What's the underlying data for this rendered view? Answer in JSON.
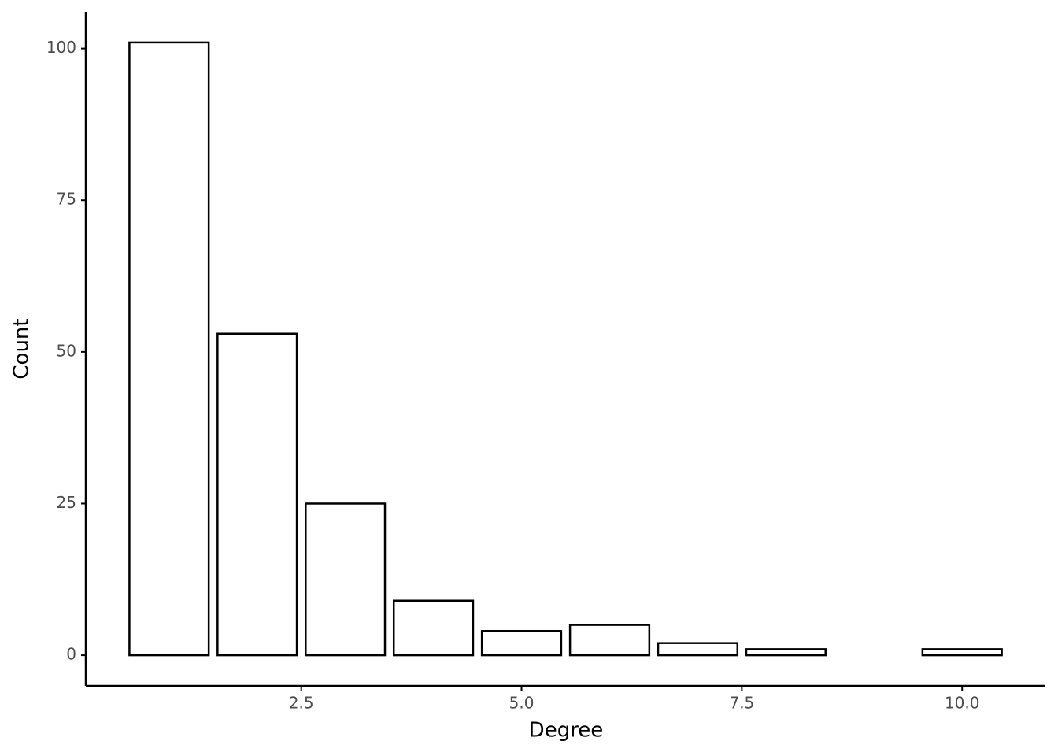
{
  "chart_data": {
    "type": "bar",
    "x_label": "Degree",
    "y_label": "Count",
    "x": [
      1,
      2,
      3,
      4,
      5,
      6,
      7,
      8,
      10
    ],
    "values": [
      101,
      53,
      25,
      9,
      4,
      5,
      2,
      1,
      1
    ],
    "color": "#ffffff",
    "edge_color": "#000000",
    "xlim": [
      0.055,
      10.945
    ],
    "ylim": [
      -5.05,
      106.05
    ],
    "xticks": [
      2.5,
      {
        "value": 5,
        "label": "5.0"
      },
      7.5,
      {
        "value": 10,
        "label": "10.0"
      }
    ],
    "yticks": [
      0,
      25,
      50,
      75,
      100
    ],
    "grid": false
  }
}
